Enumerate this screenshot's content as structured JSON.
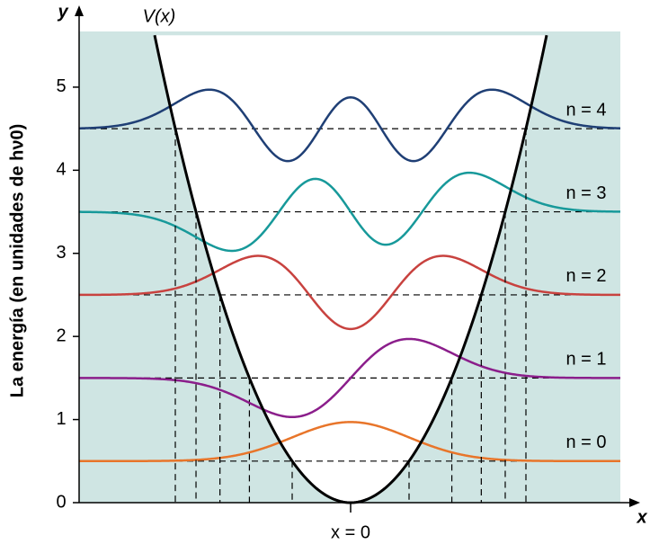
{
  "chart_data": {
    "type": "energy-levels",
    "y_label": "La energía  (en unidades de hν0)",
    "y_axis_name": "y",
    "x_axis_name": "x",
    "potential_label": "V(x)",
    "x_origin_label": "x = 0",
    "ylim": [
      0,
      5.67
    ],
    "yticks": [
      0,
      1,
      2,
      3,
      4,
      5
    ],
    "series": [
      {
        "name": "n = 0",
        "color": "#e8752a",
        "values": [
          0.5
        ]
      },
      {
        "name": "n = 1",
        "color": "#8b1e8b",
        "values": [
          1.5
        ]
      },
      {
        "name": "n = 2",
        "color": "#c8423f",
        "values": [
          2.5
        ]
      },
      {
        "name": "n = 3",
        "color": "#17999a",
        "values": [
          3.5
        ]
      },
      {
        "name": "n = 4",
        "color": "#1f3f75",
        "values": [
          4.5
        ]
      }
    ]
  }
}
